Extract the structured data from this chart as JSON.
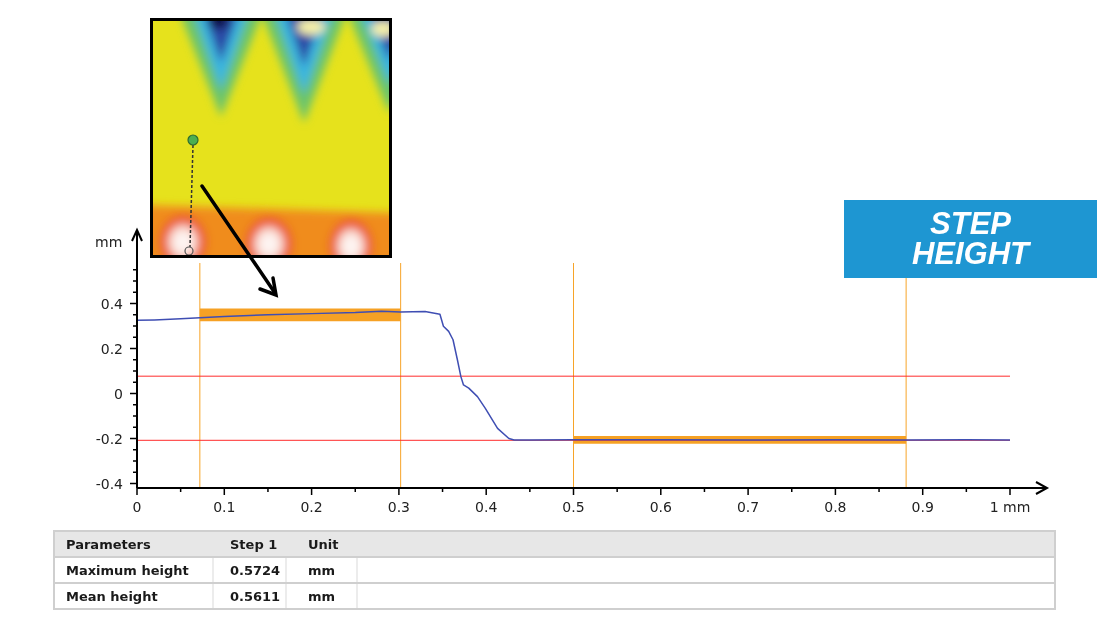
{
  "chart_data": [
    {
      "type": "line",
      "title": "STEP HEIGHT",
      "ylabel": "mm",
      "series": [
        {
          "color": "#3f4eb3",
          "x": [
            0,
            0.02,
            0.05,
            0.072,
            0.1,
            0.15,
            0.2,
            0.25,
            0.28,
            0.302,
            0.33,
            0.347,
            0.351,
            0.357,
            0.362,
            0.367,
            0.371,
            0.374,
            0.38,
            0.39,
            0.399,
            0.413,
            0.426,
            0.432,
            0.45,
            0.5,
            0.6,
            0.7,
            0.8,
            0.881,
            0.95,
            1
          ],
          "values": [
            0.325,
            0.327,
            0.332,
            0.337,
            0.342,
            0.35,
            0.355,
            0.36,
            0.366,
            0.362,
            0.364,
            0.352,
            0.299,
            0.276,
            0.239,
            0.15,
            0.075,
            0.038,
            0.024,
            -0.014,
            -0.066,
            -0.155,
            -0.2,
            -0.207,
            -0.207,
            -0.206,
            -0.205,
            -0.207,
            -0.206,
            -0.207,
            -0.206,
            -0.207
          ]
        },
        {
          "color": "#f6a124",
          "x": [
            0.072,
            0.302
          ],
          "values": [
            null,
            null
          ],
          "lower": [
            0.321,
            0.321
          ],
          "upper": [
            0.378,
            0.378
          ]
        },
        {
          "color": "#f6a124",
          "x": [
            0.5,
            0.881
          ],
          "values": [
            null,
            null
          ],
          "lower": [
            -0.223,
            -0.223
          ],
          "upper": [
            -0.189,
            -0.189
          ]
        }
      ],
      "xlim": [
        0,
        1
      ],
      "xticks": [
        0,
        {
          "value": 0.05,
          "label": null
        },
        0.1,
        {
          "value": 0.15,
          "label": null
        },
        0.2,
        {
          "value": 0.25,
          "label": null
        },
        0.3,
        {
          "value": 0.35,
          "label": null
        },
        0.4,
        {
          "value": 0.45,
          "label": null
        },
        0.5,
        {
          "value": 0.55,
          "label": null
        },
        0.6,
        {
          "value": 0.65,
          "label": null
        },
        0.7,
        {
          "value": 0.75,
          "label": null
        },
        0.8,
        {
          "value": 0.85,
          "label": null
        },
        0.9,
        {
          "value": 0.95,
          "label": null
        },
        {
          "value": 1,
          "label": "1 mm"
        }
      ],
      "ylim": [
        -0.42,
        0.58
      ],
      "yticks": [
        -0.4,
        {
          "value": -0.35,
          "label": null
        },
        {
          "value": -0.3,
          "label": null
        },
        {
          "value": -0.25,
          "label": null
        },
        -0.2,
        {
          "value": -0.15,
          "label": null
        },
        {
          "value": -0.1,
          "label": null
        },
        {
          "value": -0.05,
          "label": null
        },
        0,
        {
          "value": 0.05,
          "label": null
        },
        {
          "value": 0.1,
          "label": null
        },
        {
          "value": 0.15,
          "label": null
        },
        0.2,
        {
          "value": 0.25,
          "label": null
        },
        {
          "value": 0.3,
          "label": null
        },
        {
          "value": 0.35,
          "label": null
        },
        0.4,
        {
          "value": 0.45,
          "label": null
        },
        {
          "value": 0.5,
          "label": null
        },
        {
          "value": 0.55,
          "label": null
        }
      ],
      "ref_lines": [
        {
          "axis": "x",
          "value": 0.072,
          "color": "#f7a428"
        },
        {
          "axis": "x",
          "value": 0.302,
          "color": "#f7a428"
        },
        {
          "axis": "x",
          "value": 0.5,
          "color": "#f7a428"
        },
        {
          "axis": "x",
          "value": 0.881,
          "color": "#f7a428"
        },
        {
          "axis": "y",
          "value": 0.077,
          "color": "#ff2b2b"
        },
        {
          "axis": "y",
          "value": -0.208,
          "color": "#ff2b2b"
        }
      ],
      "marker": "none",
      "line_style": "solid"
    },
    {
      "type": "other",
      "xlabel": "Parameters",
      "ylabel": "Unit",
      "categories": [
        "Maximum height",
        "Mean height"
      ],
      "series": [
        {
          "name": "Step 1",
          "values": [
            0.5724,
            0.5611
          ]
        }
      ],
      "annotations": [
        "mm",
        "mm"
      ],
      "data_labels": true
    }
  ]
}
